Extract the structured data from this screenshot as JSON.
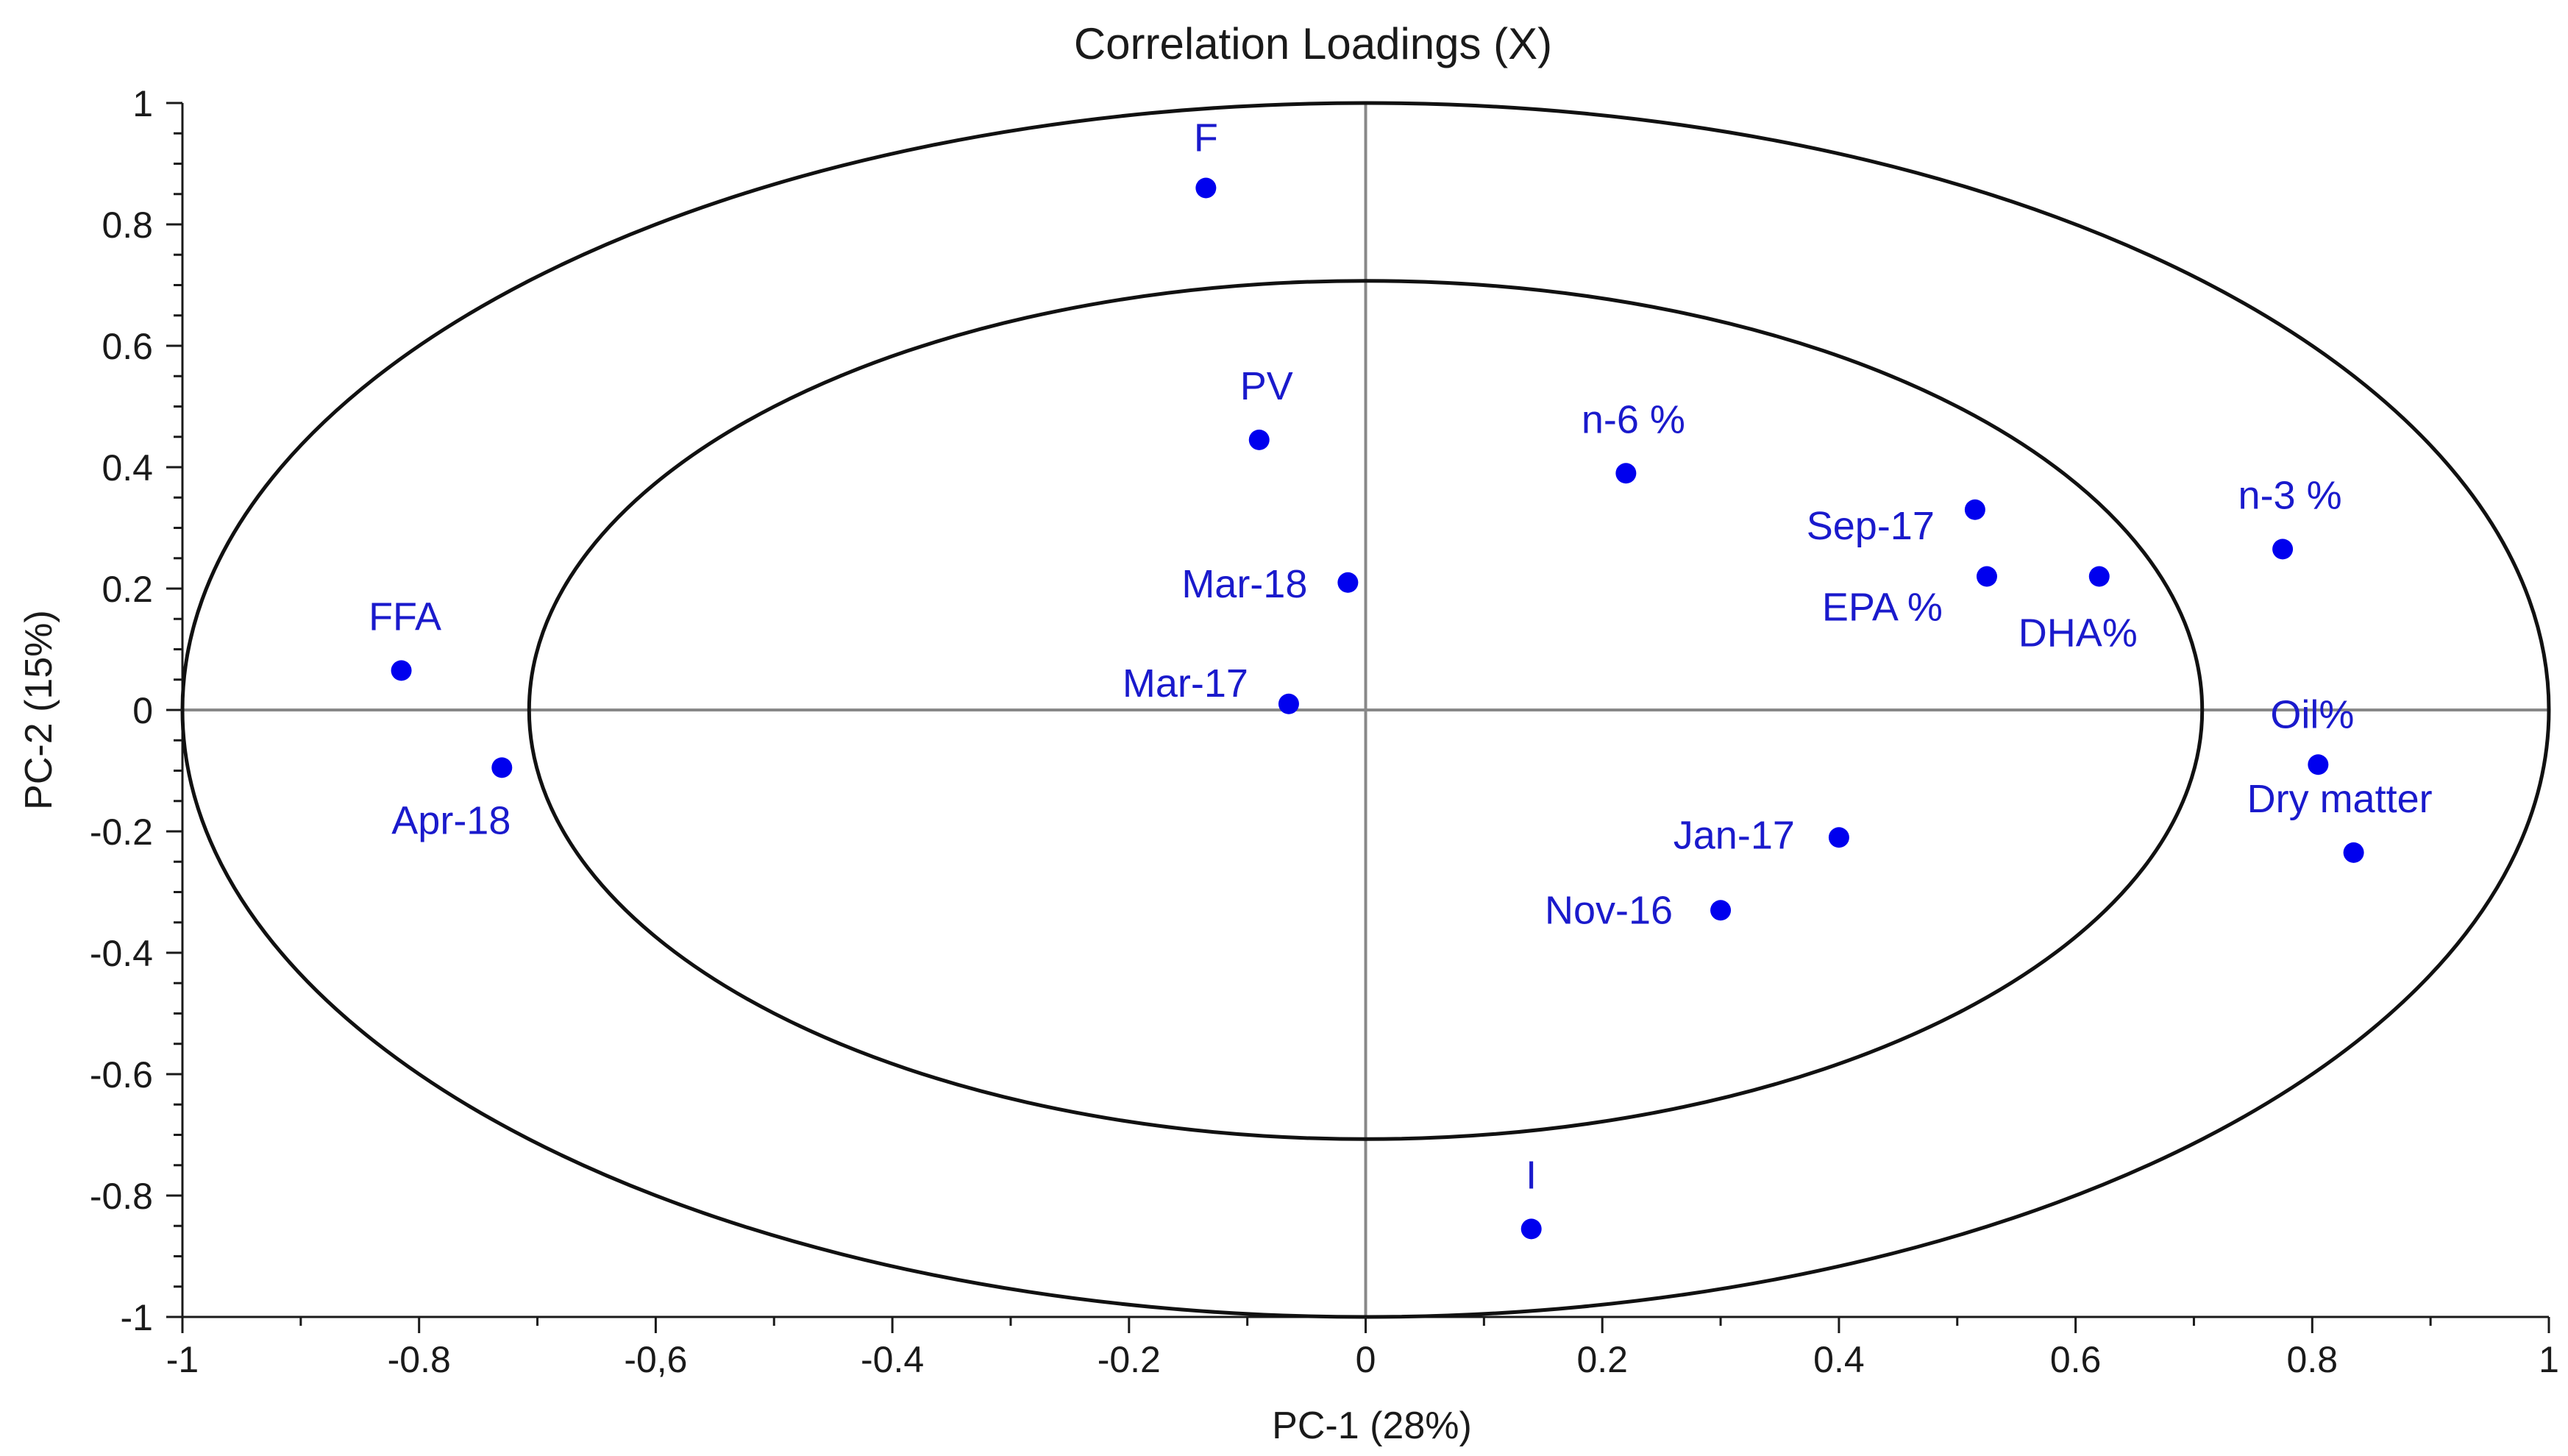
{
  "chart_data": {
    "type": "scatter",
    "title": "Correlation Loadings (X)",
    "xlabel": "PC-1 (28%)",
    "ylabel": "PC-2 (15%)",
    "xlim": [
      -1,
      1
    ],
    "ylim": [
      -1,
      1
    ],
    "x_tick_labels": [
      "-1",
      "-0.8",
      "-0,6",
      "-0.4",
      "-0.2",
      "0",
      "0.2",
      "0.4",
      "0.6",
      "0.8",
      "1"
    ],
    "y_tick_labels": [
      "1",
      "0.8",
      "0.6",
      "0.4",
      "0.2",
      "0",
      "-0.2",
      "-0.4",
      "-0.6",
      "-0.8",
      "-1"
    ],
    "circles": [
      {
        "name": "outer",
        "radius": 1.0
      },
      {
        "name": "inner",
        "radius": 0.707
      }
    ],
    "marker_color": "#0000ee",
    "label_color": "#1a1acc",
    "points": [
      {
        "label": "F",
        "x": -0.135,
        "y": 0.86
      },
      {
        "label": "PV",
        "x": -0.09,
        "y": 0.445
      },
      {
        "label": "n-6 %",
        "x": 0.22,
        "y": 0.39
      },
      {
        "label": "Sep-17",
        "x": 0.515,
        "y": 0.33
      },
      {
        "label": "n-3 %",
        "x": 0.775,
        "y": 0.265
      },
      {
        "label": "EPA %",
        "x": 0.525,
        "y": 0.22
      },
      {
        "label": "DHA%",
        "x": 0.62,
        "y": 0.22
      },
      {
        "label": "Mar-18",
        "x": -0.015,
        "y": 0.21
      },
      {
        "label": "FFA",
        "x": -0.815,
        "y": 0.065
      },
      {
        "label": "Mar-17",
        "x": -0.065,
        "y": 0.01
      },
      {
        "label": "Oil%",
        "x": 0.805,
        "y": -0.09
      },
      {
        "label": "Apr-18",
        "x": -0.73,
        "y": -0.095
      },
      {
        "label": "Jan-17",
        "x": 0.4,
        "y": -0.21
      },
      {
        "label": "Dry matter",
        "x": 0.835,
        "y": -0.235
      },
      {
        "label": "Nov-16",
        "x": 0.3,
        "y": -0.33
      },
      {
        "label": "I",
        "x": 0.14,
        "y": -0.855
      }
    ]
  }
}
